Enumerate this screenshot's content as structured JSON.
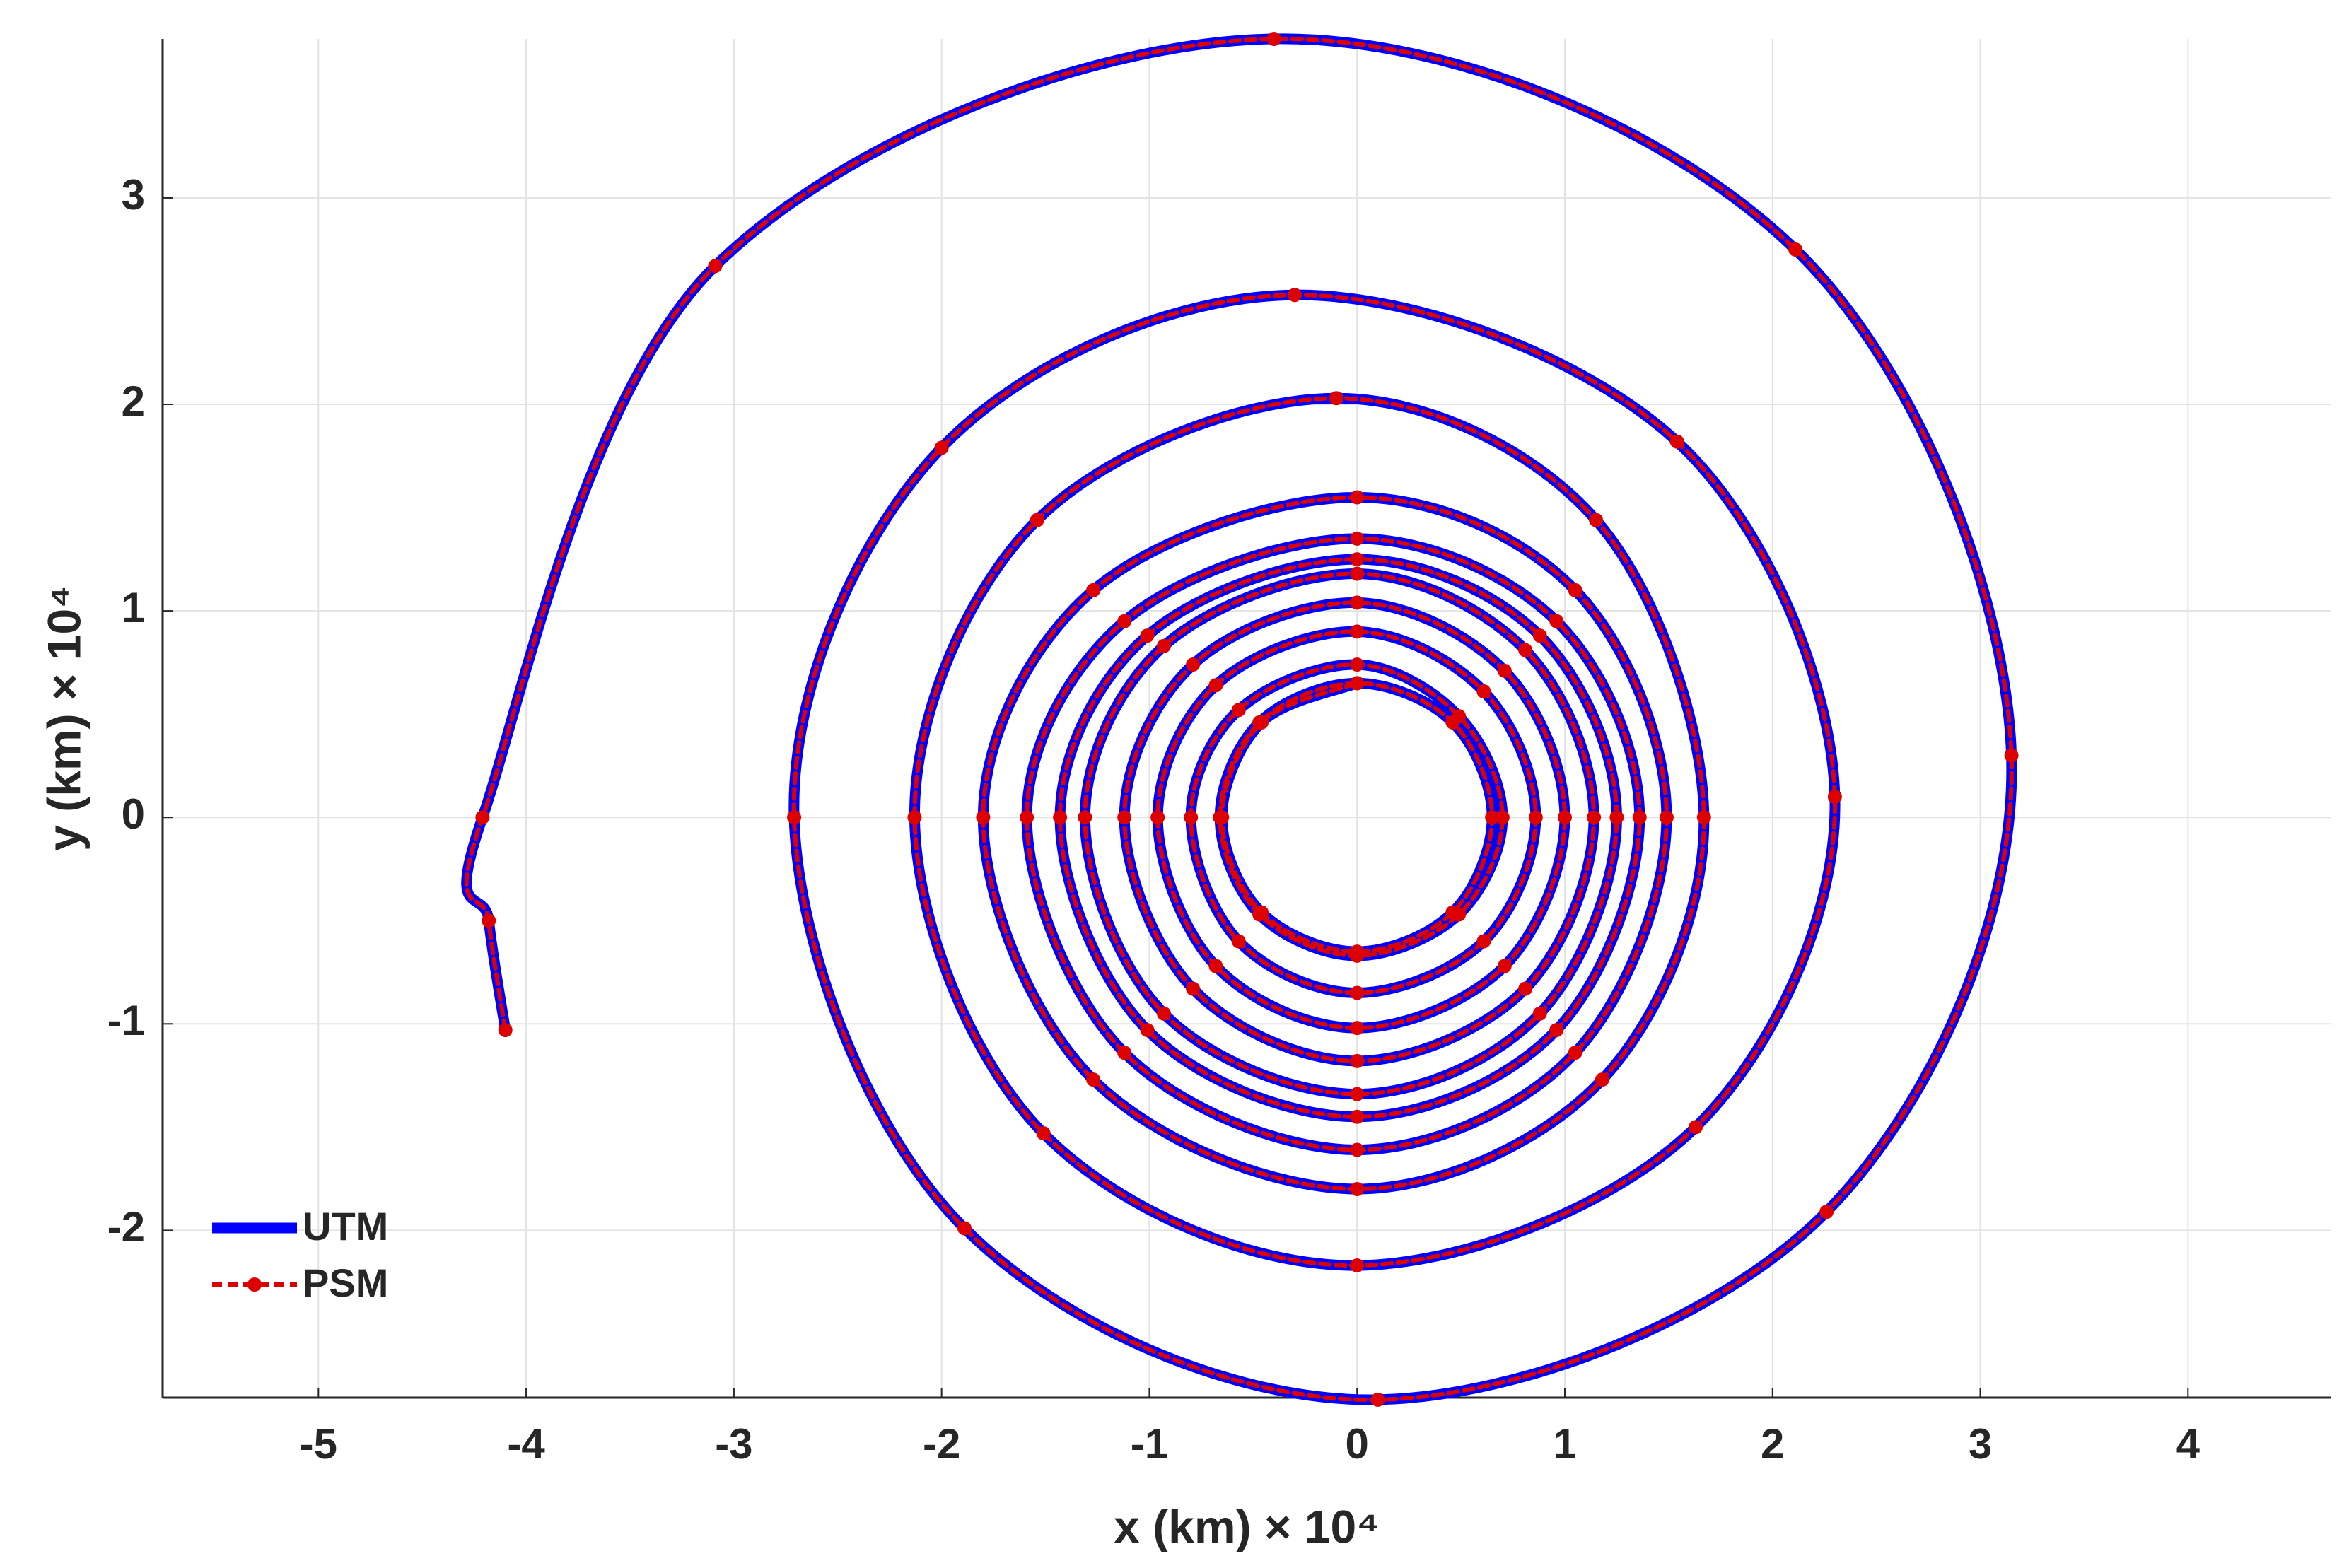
{
  "chart_data": {
    "type": "line",
    "xlabel": "x (km) × 10⁴",
    "ylabel": "y (km) × 10⁴",
    "xlim": [
      -5.75,
      4.69
    ],
    "ylim": [
      -2.81,
      3.77
    ],
    "xticks": [
      -5,
      -4,
      -3,
      -2,
      -1,
      0,
      1,
      2,
      3,
      4
    ],
    "yticks": [
      -2,
      -1,
      0,
      1,
      2,
      3
    ],
    "grid": true,
    "legend": "southwest",
    "series": [
      {
        "name": "UTM",
        "color": "#0000ff",
        "line_style": "solid",
        "x": [
          -4.1,
          -4.18,
          -4.21,
          -3.09,
          -0.4,
          2.11,
          3.15,
          2.26,
          0.1,
          -1.89,
          -2.71,
          -2.0,
          -0.3,
          1.54,
          2.3,
          1.63,
          0,
          -1.51,
          -2.13,
          -1.54,
          -0.1,
          1.15,
          1.67,
          1.18,
          0,
          -1.27,
          -1.8,
          -1.27,
          0,
          1.05,
          1.49,
          1.05,
          0,
          -1.12,
          -1.59,
          -1.12,
          0,
          0.96,
          1.36,
          0.96,
          0,
          -1.01,
          -1.43,
          -1.01,
          0,
          0.88,
          1.25,
          0.88,
          0,
          -0.93,
          -1.31,
          -0.93,
          0,
          0.81,
          1.14,
          0.81,
          0,
          -0.79,
          -1.12,
          -0.79,
          0,
          0.71,
          1.0,
          0.71,
          0,
          -0.68,
          -0.96,
          -0.68,
          0,
          0.61,
          0.86,
          0.61,
          0,
          -0.57,
          -0.8,
          -0.57,
          0,
          0.49,
          0.7,
          0.49,
          0,
          -0.47,
          -0.66,
          -0.47,
          0,
          0.46,
          0.65,
          0.46,
          0,
          -0.46,
          -0.65,
          -0.46,
          0
        ],
        "y": [
          -1.03,
          -0.5,
          0,
          2.67,
          3.77,
          2.75,
          0.3,
          -1.91,
          -2.82,
          -1.99,
          0,
          1.79,
          2.53,
          1.82,
          0.1,
          -1.5,
          -2.17,
          -1.53,
          0,
          1.44,
          2.03,
          1.44,
          0,
          -1.27,
          -1.8,
          -1.27,
          0,
          1.1,
          1.55,
          1.1,
          0,
          -1.14,
          -1.61,
          -1.14,
          0,
          0.95,
          1.35,
          0.95,
          0,
          -1.03,
          -1.45,
          -1.03,
          0,
          0.88,
          1.25,
          0.88,
          0,
          -0.95,
          -1.34,
          -0.95,
          0,
          0.83,
          1.18,
          0.81,
          0,
          -0.83,
          -1.18,
          -0.83,
          0,
          0.74,
          1.04,
          0.71,
          0,
          -0.72,
          -1.02,
          -0.72,
          0,
          0.64,
          0.9,
          0.61,
          0,
          -0.6,
          -0.85,
          -0.6,
          0,
          0.52,
          0.74,
          0.49,
          0,
          -0.47,
          -0.67,
          -0.47,
          0,
          0.46,
          0.65,
          0.46,
          0,
          -0.46,
          -0.65,
          -0.46,
          0,
          0.46,
          0.65
        ]
      },
      {
        "name": "PSM",
        "color": "#dd0000",
        "line_style": "dashed",
        "marker": "circle",
        "x": [
          -4.1,
          -4.18,
          -4.21,
          -3.09,
          -0.4,
          2.11,
          3.15,
          2.26,
          0.1,
          -1.89,
          -2.71,
          -2.0,
          -0.3,
          1.54,
          2.3,
          1.63,
          0,
          -1.51,
          -2.13,
          -1.54,
          -0.1,
          1.15,
          1.67,
          1.18,
          0,
          -1.27,
          -1.8,
          -1.27,
          0,
          1.05,
          1.49,
          1.05,
          0,
          -1.12,
          -1.59,
          -1.12,
          0,
          0.96,
          1.36,
          0.96,
          0,
          -1.01,
          -1.43,
          -1.01,
          0,
          0.88,
          1.25,
          0.88,
          0,
          -0.93,
          -1.31,
          -0.93,
          0,
          0.81,
          1.14,
          0.81,
          0,
          -0.79,
          -1.12,
          -0.79,
          0,
          0.71,
          1.0,
          0.71,
          0,
          -0.68,
          -0.96,
          -0.68,
          0,
          0.61,
          0.86,
          0.61,
          0,
          -0.57,
          -0.8,
          -0.57,
          0,
          0.49,
          0.7,
          0.49,
          0,
          -0.47,
          -0.66,
          -0.47,
          0,
          0.46,
          0.65,
          0.46,
          0,
          -0.46,
          -0.65,
          -0.46,
          0
        ],
        "y": [
          -1.03,
          -0.5,
          0,
          2.67,
          3.77,
          2.75,
          0.3,
          -1.91,
          -2.82,
          -1.99,
          0,
          1.79,
          2.53,
          1.82,
          0.1,
          -1.5,
          -2.17,
          -1.53,
          0,
          1.44,
          2.03,
          1.44,
          0,
          -1.27,
          -1.8,
          -1.27,
          0,
          1.1,
          1.55,
          1.1,
          0,
          -1.14,
          -1.61,
          -1.14,
          0,
          0.95,
          1.35,
          0.95,
          0,
          -1.03,
          -1.45,
          -1.03,
          0,
          0.88,
          1.25,
          0.88,
          0,
          -0.95,
          -1.34,
          -0.95,
          0,
          0.83,
          1.18,
          0.81,
          0,
          -0.83,
          -1.18,
          -0.83,
          0,
          0.74,
          1.04,
          0.71,
          0,
          -0.72,
          -1.02,
          -0.72,
          0,
          0.64,
          0.9,
          0.61,
          0,
          -0.6,
          -0.85,
          -0.6,
          0,
          0.52,
          0.74,
          0.49,
          0,
          -0.47,
          -0.67,
          -0.47,
          0,
          0.46,
          0.65,
          0.46,
          0,
          -0.46,
          -0.65,
          -0.46,
          0,
          0.46,
          0.65
        ]
      }
    ]
  }
}
